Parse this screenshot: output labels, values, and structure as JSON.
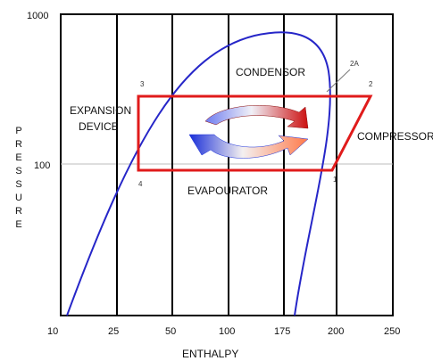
{
  "chart_data": {
    "type": "diagram",
    "ylabel": "PRESSURE",
    "xlabel": "ENTHALPY",
    "y_ticks": [
      "1000",
      "100"
    ],
    "x_ticks": [
      "10",
      "25",
      "50",
      "100",
      "175",
      "200",
      "250"
    ],
    "regions": {
      "condensor": "CONDENSOR",
      "evaporator": "EVAPOURATOR",
      "expansion_line1": "EXPANSION",
      "expansion_line2": "DEVICE",
      "compressor": "COMPRESSOR"
    },
    "state_points": [
      "1",
      "2",
      "2A",
      "3",
      "4"
    ],
    "colors": {
      "cycle": "#e01b1b",
      "dome": "#2626c8",
      "grid": "#000000"
    }
  }
}
